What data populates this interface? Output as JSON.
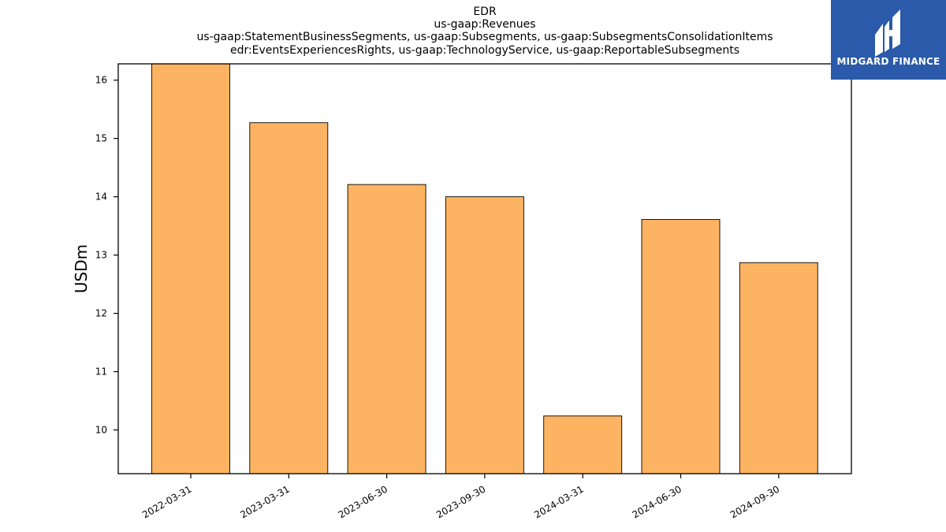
{
  "title": {
    "lines": [
      "EDR",
      "us-gaap:Revenues",
      "us-gaap:StatementBusinessSegments, us-gaap:Subsegments, us-gaap:SubsegmentsConsolidationItems",
      "edr:EventsExperiencesRights, us-gaap:TechnologyService, us-gaap:ReportableSubsegments"
    ]
  },
  "logo": {
    "text": "MIDGARD FINANCE",
    "icon": "midgard-logo-icon",
    "color": "#2a5aa9"
  },
  "chart_data": {
    "type": "bar",
    "categories": [
      "2022-03-31",
      "2023-03-31",
      "2023-06-30",
      "2023-09-30",
      "2024-03-31",
      "2024-06-30",
      "2024-09-30"
    ],
    "values": [
      16.28,
      15.27,
      14.21,
      14.0,
      10.24,
      13.61,
      12.87
    ],
    "ylabel": "USDm",
    "xlabel": "",
    "ylim": [
      9.25,
      16.28
    ],
    "yticks": [
      10,
      11,
      12,
      13,
      14,
      15,
      16
    ],
    "bar_color": "#fdb462",
    "bar_edge_color": "#000000",
    "grid": false
  }
}
